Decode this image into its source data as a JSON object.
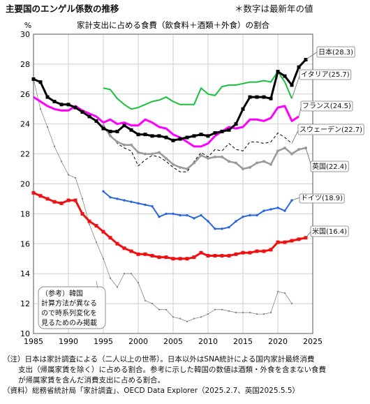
{
  "header": {
    "title": "主要国のエンゲル係数の推移",
    "note": "＊数字は最新年の値"
  },
  "chart_data": {
    "type": "line",
    "title": "家計支出に占める食費（飲食料＋酒類＋外食）の割合",
    "ylabel": "%",
    "xlim": [
      1985,
      2025
    ],
    "ylim": [
      10,
      30
    ],
    "xticks": [
      1985,
      1990,
      1995,
      2000,
      2005,
      2010,
      2015,
      2020,
      2025
    ],
    "yticks": [
      10,
      12,
      14,
      16,
      18,
      20,
      22,
      24,
      26,
      28,
      30
    ],
    "grid": true,
    "series": [
      {
        "name": "日本",
        "label": "日本(28.3)",
        "color": "#000000",
        "style": "thick-square",
        "x": [
          1985,
          1986,
          1987,
          1988,
          1989,
          1990,
          1991,
          1992,
          1993,
          1994,
          1995,
          1996,
          1997,
          1998,
          1999,
          2000,
          2001,
          2002,
          2003,
          2004,
          2005,
          2006,
          2007,
          2008,
          2009,
          2010,
          2011,
          2012,
          2013,
          2014,
          2015,
          2016,
          2017,
          2018,
          2019,
          2020,
          2021,
          2022,
          2023,
          2024
        ],
        "y": [
          27.0,
          26.8,
          25.8,
          25.5,
          25.3,
          25.3,
          25.1,
          24.8,
          24.5,
          24.2,
          23.7,
          23.5,
          23.5,
          23.9,
          23.6,
          23.3,
          23.3,
          23.2,
          23.2,
          23.1,
          22.9,
          23.0,
          23.1,
          23.2,
          23.3,
          23.2,
          23.4,
          23.5,
          23.6,
          24.0,
          25.0,
          25.8,
          25.8,
          25.8,
          25.7,
          27.5,
          27.2,
          26.6,
          27.8,
          28.3
        ]
      },
      {
        "name": "イタリア",
        "label": "イタリア(25.7)",
        "color": "#16c23a",
        "style": "medium",
        "x": [
          1995,
          1996,
          1997,
          1998,
          1999,
          2000,
          2001,
          2002,
          2003,
          2004,
          2005,
          2006,
          2007,
          2008,
          2009,
          2010,
          2011,
          2012,
          2013,
          2014,
          2015,
          2016,
          2017,
          2018,
          2019,
          2020,
          2021,
          2022
        ],
        "y": [
          26.4,
          26.3,
          25.7,
          25.3,
          25.0,
          25.1,
          25.3,
          25.5,
          25.6,
          25.8,
          25.5,
          25.3,
          25.3,
          25.3,
          26.4,
          26.0,
          25.9,
          26.5,
          26.6,
          26.6,
          26.7,
          26.8,
          26.8,
          26.9,
          26.8,
          27.5,
          26.8,
          25.7
        ]
      },
      {
        "name": "フランス",
        "label": "フランス(24.5)",
        "color": "#ff00ff",
        "style": "thick",
        "x": [
          1985,
          1986,
          1987,
          1988,
          1989,
          1990,
          1991,
          1992,
          1993,
          1994,
          1995,
          1996,
          1997,
          1998,
          1999,
          2000,
          2001,
          2002,
          2003,
          2004,
          2005,
          2006,
          2007,
          2008,
          2009,
          2010,
          2011,
          2012,
          2013,
          2014,
          2015,
          2016,
          2017,
          2018,
          2019,
          2020,
          2021,
          2022,
          2023
        ],
        "y": [
          25.8,
          25.5,
          25.2,
          25.0,
          24.9,
          24.9,
          25.2,
          24.9,
          24.7,
          24.5,
          24.1,
          24.3,
          24.0,
          24.1,
          23.9,
          23.9,
          24.3,
          24.1,
          23.8,
          23.7,
          23.3,
          23.1,
          22.8,
          22.5,
          22.5,
          22.7,
          23.2,
          23.5,
          23.8,
          23.7,
          23.8,
          24.3,
          24.3,
          24.2,
          24.4,
          25.1,
          25.2,
          24.2,
          24.5
        ]
      },
      {
        "name": "スウェーデン",
        "label": "スウェーデン(22.7)",
        "color": "#000000",
        "style": "dashed",
        "x": [
          1995,
          1996,
          1997,
          1998,
          1999,
          2000,
          2001,
          2002,
          2003,
          2004,
          2005,
          2006,
          2007,
          2008,
          2009,
          2010,
          2011,
          2012,
          2013,
          2014,
          2015,
          2016,
          2017,
          2018,
          2019,
          2020,
          2021,
          2022
        ],
        "y": [
          23.8,
          23.3,
          22.7,
          22.4,
          22.2,
          21.2,
          21.6,
          21.9,
          21.8,
          21.5,
          21.1,
          20.8,
          20.8,
          21.5,
          22.1,
          21.8,
          22.3,
          22.2,
          22.7,
          22.3,
          22.2,
          22.8,
          22.8,
          22.7,
          22.8,
          23.4,
          23.1,
          22.7
        ]
      },
      {
        "name": "英国",
        "label": "英国(22.4)",
        "color": "#999999",
        "style": "gray-dot",
        "x": [
          1995,
          1996,
          1997,
          1998,
          1999,
          2000,
          2001,
          2002,
          2003,
          2004,
          2005,
          2006,
          2007,
          2008,
          2009,
          2010,
          2011,
          2012,
          2013,
          2014,
          2015,
          2016,
          2017,
          2018,
          2019,
          2020,
          2021,
          2022,
          2023,
          2024
        ],
        "y": [
          23.9,
          23.2,
          22.8,
          22.6,
          22.6,
          22.1,
          22.0,
          22.0,
          22.1,
          21.7,
          21.3,
          21.1,
          21.0,
          21.4,
          21.9,
          21.7,
          21.8,
          21.8,
          21.5,
          21.4,
          21.0,
          21.1,
          21.4,
          21.5,
          21.3,
          22.2,
          22.4,
          22.0,
          22.3,
          22.4
        ]
      },
      {
        "name": "ドイツ",
        "label": "ドイツ(18.9)",
        "color": "#2a66e0",
        "style": "medium-marker",
        "x": [
          1995,
          1996,
          1997,
          1998,
          1999,
          2000,
          2001,
          2002,
          2003,
          2004,
          2005,
          2006,
          2007,
          2008,
          2009,
          2010,
          2011,
          2012,
          2013,
          2014,
          2015,
          2016,
          2017,
          2018,
          2019,
          2020,
          2021,
          2022
        ],
        "y": [
          19.5,
          19.1,
          19.0,
          18.9,
          18.8,
          18.7,
          18.6,
          18.5,
          17.8,
          18.0,
          18.0,
          17.9,
          17.9,
          17.7,
          17.9,
          17.5,
          17.0,
          17.0,
          17.1,
          17.5,
          17.8,
          17.9,
          17.9,
          18.2,
          18.3,
          18.4,
          18.2,
          18.9
        ]
      },
      {
        "name": "米国",
        "label": "米国(16.4)",
        "color": "#ee1111",
        "style": "thick-square",
        "x": [
          1985,
          1986,
          1987,
          1988,
          1989,
          1990,
          1991,
          1992,
          1993,
          1994,
          1995,
          1996,
          1997,
          1998,
          1999,
          2000,
          2001,
          2002,
          2003,
          2004,
          2005,
          2006,
          2007,
          2008,
          2009,
          2010,
          2011,
          2012,
          2013,
          2014,
          2015,
          2016,
          2017,
          2018,
          2019,
          2020,
          2021,
          2022,
          2023,
          2024
        ],
        "y": [
          19.4,
          19.2,
          19.0,
          18.8,
          18.7,
          18.9,
          18.9,
          18.0,
          17.5,
          17.2,
          16.8,
          16.4,
          16.0,
          15.7,
          15.5,
          15.3,
          15.3,
          15.2,
          15.1,
          15.1,
          15.0,
          15.0,
          15.0,
          15.1,
          15.4,
          15.2,
          15.2,
          15.2,
          15.2,
          15.3,
          15.4,
          15.4,
          15.5,
          15.5,
          15.6,
          16.1,
          16.1,
          16.2,
          16.3,
          16.4
        ]
      },
      {
        "name": "韓国",
        "label": "（参考）韓国",
        "color": "#888888",
        "style": "thin",
        "x": [
          1985,
          1986,
          1987,
          1988,
          1989,
          1990,
          1991,
          1992,
          1993,
          1994,
          1995,
          1996,
          1997,
          1998,
          1999,
          2000,
          2001,
          2002,
          2003,
          2004,
          2005,
          2006,
          2007,
          2008,
          2009,
          2010,
          2011,
          2012,
          2013,
          2014,
          2015,
          2016,
          2017,
          2018,
          2019,
          2020,
          2021,
          2022
        ],
        "y": [
          27.0,
          25.0,
          23.8,
          22.5,
          21.5,
          20.6,
          20.4,
          19.0,
          17.3,
          16.1,
          15.0,
          13.7,
          13.1,
          14.0,
          14.0,
          13.4,
          12.2,
          12.0,
          11.6,
          11.6,
          11.1,
          11.0,
          10.8,
          11.0,
          11.1,
          11.3,
          11.6,
          11.6,
          11.5,
          11.4,
          11.4,
          11.4,
          11.3,
          11.3,
          11.4,
          12.8,
          12.7,
          12.0
        ]
      }
    ],
    "annotation": [
      "（参考）韓国",
      "計算方法が異なる",
      "ので時系列変化を",
      "見るためのみ掲載"
    ]
  },
  "notes": [
    "（注）日本は家計調査による（二人以上の世帯）。日本以外はSNA統計による国内家計最終消費",
    "支出（帰属家賃を除く）に占める割合。参考に示した韓国の数値は酒類・外食を含まない食費",
    "が帰属家賃を含んだ消費支出に占める割合。",
    "（資料）総務省統計局「家計調査」、OECD Data Explorer（2025.2.7、英国2025.5.5）"
  ]
}
